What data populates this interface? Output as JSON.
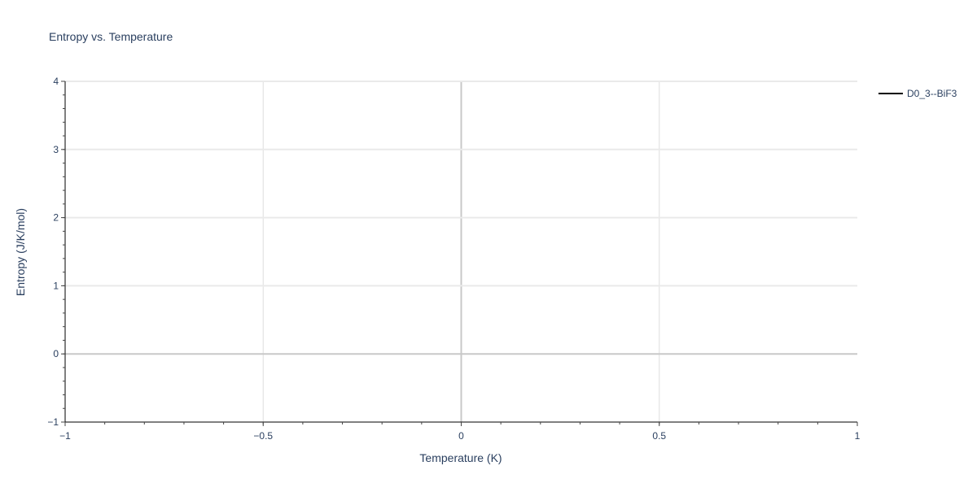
{
  "chart_data": {
    "type": "line",
    "title": "Entropy vs. Temperature",
    "xlabel": "Temperature (K)",
    "ylabel": "Entropy (J/K/mol)",
    "xlim": [
      -1,
      1
    ],
    "ylim": [
      -1,
      4
    ],
    "xticks": [
      -1,
      -0.5,
      0,
      0.5,
      1
    ],
    "xtick_labels": [
      "−1",
      "−0.5",
      "0",
      "0.5",
      "1"
    ],
    "yticks": [
      -1,
      0,
      1,
      2,
      3,
      4
    ],
    "ytick_labels": [
      "−1",
      "0",
      "1",
      "2",
      "3",
      "4"
    ],
    "x_minor_step": 0.1,
    "y_minor_step": 0.2,
    "grid": true,
    "legend_placement": "top-right",
    "series": [
      {
        "name": "D0_3--BiF3",
        "color": "#000000",
        "x": [],
        "y": []
      }
    ]
  }
}
